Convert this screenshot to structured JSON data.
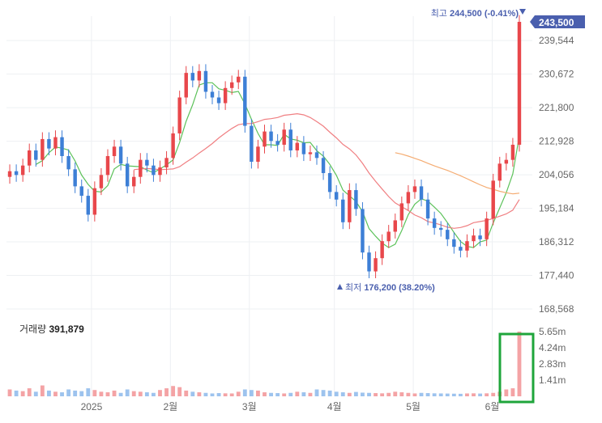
{
  "colors": {
    "up": "#e8474b",
    "down": "#3d7fd6",
    "ma5": "#5cc25a",
    "ma20": "#f07f82",
    "ma60": "#f5ac72",
    "ma120": "#b07ef0",
    "grid": "#eef0f3",
    "axis_text": "#666666",
    "current_tag": "#4a5fae",
    "high_low_text": "#4a5fae",
    "volume_up": "#f4a3a5",
    "volume_down": "#9dc3ee",
    "highlight_box": "#1fa53b"
  },
  "chart_data": [
    {
      "type": "candlestick",
      "x_tick_labels": [
        "2025",
        "2월",
        "3월",
        "4월",
        "5월",
        "6월"
      ],
      "y_tick_labels": [
        "239,544",
        "230,672",
        "221,800",
        "212,928",
        "204,056",
        "195,184",
        "186,312",
        "177,440",
        "168,568"
      ],
      "ylim": [
        168568,
        246000
      ],
      "current_price": 243500,
      "current_price_label": "243,500",
      "high_prefix": "최고",
      "high_value": "244,500 (-0.41%)",
      "low_prefix": "최저",
      "low_value": "176,200 (38.20%)",
      "series": [
        {
          "name": "close",
          "values": [
            205000,
            204000,
            206500,
            210500,
            208000,
            213500,
            211000,
            214000,
            209000,
            205500,
            201000,
            198500,
            193500,
            200500,
            204000,
            209000,
            211500,
            207000,
            201000,
            203500,
            208000,
            206500,
            204000,
            206000,
            208500,
            215000,
            224500,
            231000,
            229000,
            231500,
            226000,
            224500,
            223000,
            227000,
            228500,
            230000,
            217000,
            207500,
            211500,
            215500,
            213000,
            212000,
            216000,
            210500,
            212500,
            209500,
            210000,
            208500,
            204500,
            199500,
            197500,
            191500,
            200000,
            195000,
            183500,
            178500,
            182000,
            186500,
            189000,
            192000,
            196500,
            199500,
            201000,
            197500,
            192500,
            190000,
            189500,
            187000,
            185000,
            184000,
            186500,
            188000,
            187000,
            192500,
            202500,
            207000,
            208000,
            212000,
            244500
          ]
        },
        {
          "name": "MA5",
          "values": [
            null,
            null,
            null,
            null,
            206800,
            207800,
            209900,
            211400,
            211100,
            210600,
            207700,
            204000,
            201500,
            199700,
            199500,
            201200,
            205600,
            206800,
            206400,
            206300,
            206200,
            205300,
            204600,
            205600,
            206700,
            208000,
            212600,
            218200,
            222600,
            227800,
            228400,
            228400,
            226800,
            226400,
            225800,
            226100,
            222800,
            218700,
            215000,
            212000,
            212000,
            211800,
            214800,
            213500,
            213200,
            212500,
            212600,
            210400,
            209000,
            206800,
            203900,
            200000,
            198500,
            197000,
            194300,
            189800,
            187800,
            186000,
            184800,
            185700,
            189300,
            193500,
            196300,
            197700,
            197100,
            195500,
            193800,
            191400,
            188800,
            186400,
            185100,
            184800,
            186300,
            186800,
            191300,
            195300,
            199300,
            204300,
            214400
          ]
        },
        {
          "name": "MA20",
          "values": [
            null,
            null,
            null,
            null,
            null,
            null,
            null,
            null,
            null,
            null,
            null,
            null,
            null,
            null,
            null,
            null,
            null,
            null,
            null,
            205400,
            205600,
            205700,
            205600,
            205400,
            205500,
            205600,
            206200,
            207400,
            208500,
            209800,
            211000,
            212300,
            213800,
            215100,
            216300,
            217300,
            217600,
            217600,
            218100,
            218700,
            218900,
            219200,
            219800,
            220000,
            220200,
            219900,
            219200,
            218100,
            216900,
            215300,
            213800,
            212100,
            210900,
            209300,
            207100,
            204500,
            202300,
            200300,
            198300,
            196600,
            195600,
            194600,
            193400,
            192700,
            191700,
            191300,
            190800,
            190200,
            189900,
            190100,
            190600,
            191400,
            191700,
            192000,
            192500,
            193100,
            193700,
            194700,
            197500
          ]
        },
        {
          "name": "MA60",
          "values": [
            null,
            null,
            null,
            null,
            null,
            null,
            null,
            null,
            null,
            null,
            null,
            null,
            null,
            null,
            null,
            null,
            null,
            null,
            null,
            null,
            null,
            null,
            null,
            null,
            null,
            null,
            null,
            null,
            null,
            null,
            null,
            null,
            null,
            null,
            null,
            null,
            null,
            null,
            null,
            null,
            null,
            null,
            null,
            null,
            null,
            null,
            null,
            null,
            null,
            null,
            null,
            null,
            null,
            null,
            null,
            null,
            null,
            null,
            null,
            209900,
            209500,
            209000,
            208400,
            207800,
            207100,
            206400,
            205800,
            205200,
            204500,
            203800,
            203000,
            202200,
            201400,
            200700,
            200200,
            199700,
            199300,
            199000,
            199200
          ]
        },
        {
          "name": "MA120",
          "values": [
            null,
            null,
            null,
            null,
            null,
            null,
            null,
            null,
            null,
            null,
            null,
            null,
            null,
            null,
            null,
            null,
            null,
            null,
            null,
            null,
            null,
            null,
            null,
            null,
            null,
            null,
            null,
            null,
            null,
            null,
            null,
            null,
            null,
            null,
            null,
            null,
            null,
            null,
            null,
            null,
            null,
            null,
            null,
            null,
            null,
            null,
            null,
            null,
            null,
            null,
            null,
            null,
            null,
            null,
            null,
            null,
            null,
            null,
            null,
            null,
            null,
            null,
            null,
            null,
            null,
            null,
            null,
            null,
            null,
            null,
            null,
            null,
            null,
            null,
            null,
            null,
            null,
            null,
            null
          ]
        }
      ]
    },
    {
      "type": "bar",
      "label": "거래량",
      "value_label": "391,879",
      "y_tick_labels": [
        "5.65m",
        "4.24m",
        "2.83m",
        "1.41m"
      ],
      "ylim": [
        0,
        6000000
      ],
      "values": [
        600000,
        500000,
        450000,
        700000,
        400000,
        950000,
        500000,
        400000,
        350000,
        600000,
        500000,
        450000,
        700000,
        550000,
        400000,
        350000,
        500000,
        300000,
        600000,
        450000,
        400000,
        350000,
        300000,
        550000,
        700000,
        900000,
        800000,
        500000,
        400000,
        350000,
        300000,
        250000,
        280000,
        260000,
        250000,
        400000,
        600000,
        550000,
        500000,
        350000,
        300000,
        280000,
        250000,
        300000,
        400000,
        350000,
        300000,
        600000,
        550000,
        500000,
        400000,
        350000,
        300000,
        380000,
        320000,
        300000,
        280000,
        260000,
        300000,
        400000,
        350000,
        300000,
        250000,
        300000,
        280000,
        260000,
        250000,
        240000,
        230000,
        220000,
        250000,
        260000,
        240000,
        260000,
        300000,
        400000,
        600000,
        700000,
        5650000
      ]
    }
  ]
}
